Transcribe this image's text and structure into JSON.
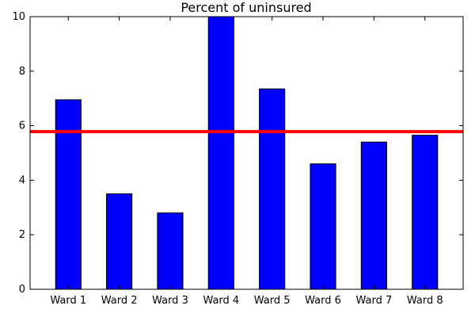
{
  "chart_data": {
    "type": "bar",
    "title": "Percent of uninsured",
    "xlabel": "",
    "ylabel": "",
    "categories": [
      "Ward 1",
      "Ward 2",
      "Ward 3",
      "Ward 4",
      "Ward 5",
      "Ward 6",
      "Ward 7",
      "Ward 8"
    ],
    "values": [
      6.95,
      3.5,
      2.8,
      10.0,
      7.35,
      4.6,
      5.4,
      5.65
    ],
    "ylim": [
      0,
      10
    ],
    "yticks": [
      "0",
      "2",
      "4",
      "6",
      "8",
      "10"
    ],
    "reference_line": {
      "y": 5.78,
      "color": "#ff0000"
    },
    "bar_color": "#0000ff",
    "grid": false,
    "legend": "none"
  }
}
